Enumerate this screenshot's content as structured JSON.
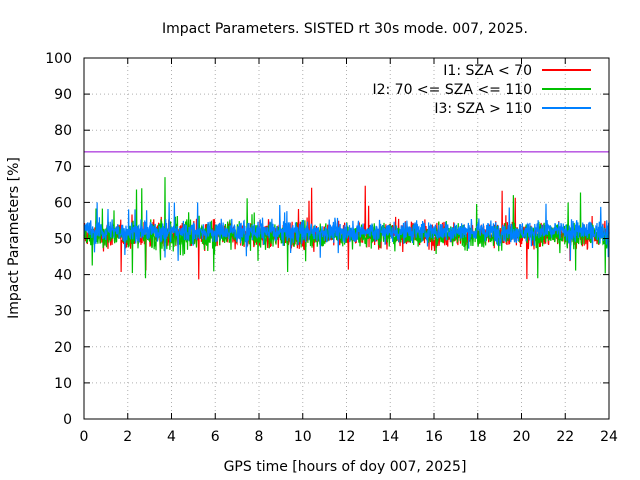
{
  "chart_data": {
    "type": "line",
    "title": "Impact Parameters. SISTED rt 30s mode. 007, 2025.",
    "xlabel": "GPS time [hours of doy 007, 2025]",
    "ylabel": "Impact Parameters [%]",
    "xlim": [
      0,
      24
    ],
    "ylim": [
      0,
      100
    ],
    "x_ticks": [
      0,
      2,
      4,
      6,
      8,
      10,
      12,
      14,
      16,
      18,
      20,
      22,
      24
    ],
    "y_ticks": [
      0,
      10,
      20,
      30,
      40,
      50,
      60,
      70,
      80,
      90,
      100
    ],
    "grid": true,
    "legend_position": "top-right",
    "series": [
      {
        "name": "I1: SZA < 70",
        "color": "#ff0000",
        "mean": 51,
        "spread_typical": [
          45,
          58
        ],
        "extremes": [
          37,
          66
        ]
      },
      {
        "name": "I2: 70 <= SZA <= 110",
        "color": "#00c000",
        "mean": 51,
        "spread_typical": [
          44,
          60
        ],
        "extremes": [
          39,
          67
        ]
      },
      {
        "name": "I3: SZA > 110",
        "color": "#0080ff",
        "mean": 52,
        "spread_typical": [
          46,
          57
        ],
        "extremes": [
          43,
          60
        ]
      }
    ],
    "threshold": {
      "value": 74,
      "color": "#9400d3"
    }
  }
}
